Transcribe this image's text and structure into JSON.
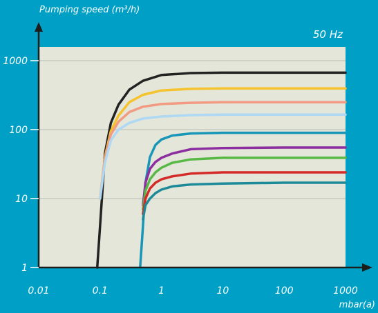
{
  "chart_data": {
    "type": "line",
    "ylabel": "Pumping speed (m³/h)",
    "xlabel": "mbar(a)",
    "annotation": "50 Hz",
    "x_scale": "log",
    "y_scale": "log",
    "xlim": [
      0.01,
      1000
    ],
    "ylim": [
      1,
      1000
    ],
    "x_ticks": [
      "0.01",
      "0.1",
      "1",
      "10",
      "100",
      "1000"
    ],
    "y_ticks": [
      "1",
      "10",
      "100",
      "1000"
    ],
    "grid": "horizontal",
    "background_color": "#00a0c6",
    "plot_color": "#e3e6d8",
    "series": [
      {
        "color": "#222222",
        "x": [
          0.09,
          0.1,
          0.12,
          0.15,
          0.2,
          0.3,
          0.5,
          1,
          3,
          10,
          100,
          1000
        ],
        "y": [
          1,
          4,
          45,
          125,
          230,
          380,
          510,
          620,
          660,
          670,
          670,
          670
        ]
      },
      {
        "color": "#f5c32e",
        "x": [
          0.1,
          0.12,
          0.15,
          0.2,
          0.3,
          0.5,
          1,
          3,
          10,
          100,
          1000
        ],
        "y": [
          10,
          40,
          95,
          160,
          250,
          320,
          370,
          390,
          395,
          395,
          395
        ]
      },
      {
        "color": "#f29a82",
        "x": [
          0.1,
          0.12,
          0.15,
          0.2,
          0.3,
          0.5,
          1,
          3,
          10,
          100,
          1000
        ],
        "y": [
          10,
          38,
          85,
          130,
          180,
          215,
          235,
          245,
          250,
          250,
          250
        ]
      },
      {
        "color": "#aed8f4",
        "x": [
          0.1,
          0.12,
          0.15,
          0.2,
          0.3,
          0.5,
          1,
          3,
          10,
          100,
          1000
        ],
        "y": [
          10,
          33,
          70,
          100,
          125,
          145,
          155,
          162,
          165,
          165,
          165
        ]
      },
      {
        "color": "#1896b8",
        "x": [
          0.45,
          0.5,
          0.55,
          0.65,
          0.8,
          1,
          1.5,
          3,
          10,
          100,
          1000
        ],
        "y": [
          1,
          4,
          17,
          40,
          60,
          72,
          82,
          88,
          90,
          90,
          90
        ]
      },
      {
        "color": "#8c2da0",
        "x": [
          0.5,
          0.55,
          0.65,
          0.8,
          1,
          1.5,
          3,
          10,
          100,
          1000
        ],
        "y": [
          8,
          17,
          27,
          34,
          39,
          45,
          52,
          54,
          55,
          55
        ]
      },
      {
        "color": "#58b846",
        "x": [
          0.5,
          0.55,
          0.65,
          0.8,
          1,
          1.5,
          3,
          10,
          100,
          1000
        ],
        "y": [
          7,
          13,
          19,
          24,
          28,
          33,
          37,
          39,
          39,
          39
        ]
      },
      {
        "color": "#d42a28",
        "x": [
          0.5,
          0.55,
          0.65,
          0.8,
          1,
          1.5,
          3,
          10,
          100,
          1000
        ],
        "y": [
          6,
          10,
          14,
          17,
          19,
          21,
          23,
          24,
          24,
          24
        ]
      },
      {
        "color": "#1c8a98",
        "x": [
          0.5,
          0.55,
          0.65,
          0.8,
          1,
          1.5,
          3,
          10,
          100,
          1000
        ],
        "y": [
          5,
          8,
          10,
          12,
          13.5,
          15,
          16,
          16.5,
          17,
          17
        ]
      }
    ]
  }
}
